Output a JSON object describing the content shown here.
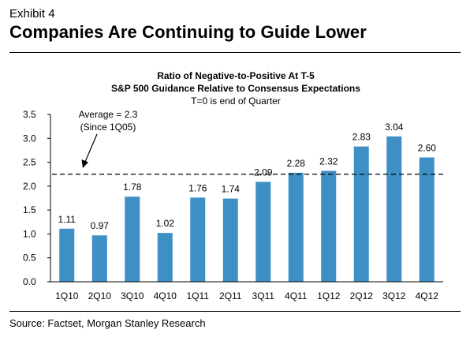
{
  "header": {
    "exhibit_label": "Exhibit 4",
    "headline": "Companies Are Continuing to Guide Lower"
  },
  "footer": {
    "source": "Source: Factset, Morgan Stanley Research"
  },
  "colors": {
    "bar": "#3d8fc6",
    "text": "#000000",
    "axis": "#000000"
  },
  "chart_data": {
    "type": "bar",
    "title": "Ratio of Negative-to-Positive At T-5",
    "subtitle": "S&P 500 Guidance Relative to Consensus Expectations",
    "note": "T=0 is end of Quarter",
    "xlabel": "",
    "ylabel": "",
    "ylim": [
      0,
      3.5
    ],
    "yticks": [
      "0.0",
      "0.5",
      "1.0",
      "1.5",
      "2.0",
      "2.5",
      "3.0",
      "3.5"
    ],
    "categories": [
      "1Q10",
      "2Q10",
      "3Q10",
      "4Q10",
      "1Q11",
      "2Q11",
      "3Q11",
      "4Q11",
      "1Q12",
      "2Q12",
      "3Q12",
      "4Q12"
    ],
    "values": [
      1.11,
      0.97,
      1.78,
      1.02,
      1.76,
      1.74,
      2.09,
      2.28,
      2.32,
      2.83,
      3.04,
      2.6
    ],
    "value_labels": [
      "1.11",
      "0.97",
      "1.78",
      "1.02",
      "1.76",
      "1.74",
      "2.09",
      "2.28",
      "2.32",
      "2.83",
      "3.04",
      "2.60"
    ],
    "reference_line": {
      "value": 2.25,
      "label_line1": "Average = 2.3",
      "label_line2": "(Since 1Q05)",
      "style": "dashed"
    },
    "grid": false,
    "legend": "none"
  }
}
